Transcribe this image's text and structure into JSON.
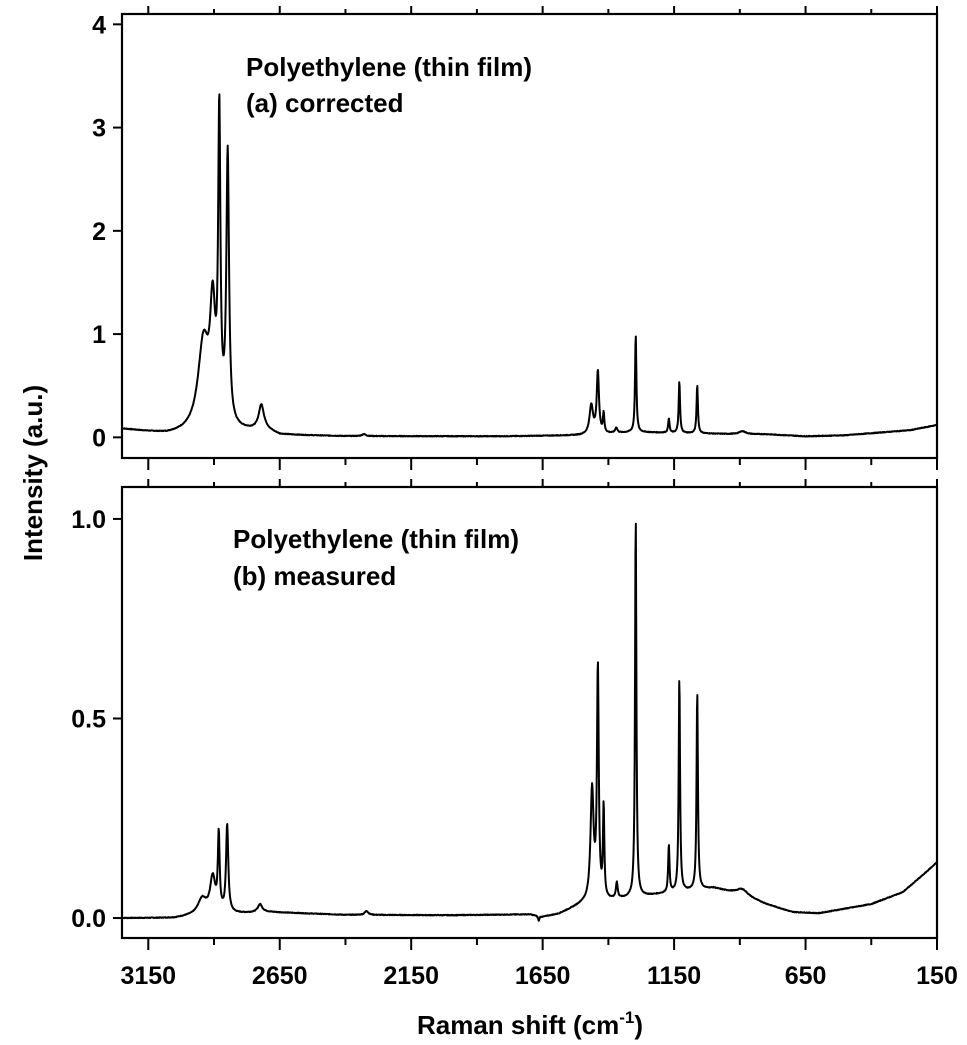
{
  "chart_data": [
    {
      "type": "line",
      "panel": "top",
      "annotation": [
        "Polyethylene (thin film)",
        "(a) corrected"
      ],
      "xlabel": "",
      "ylabel": "",
      "xlim": [
        3250,
        150
      ],
      "x_reversed": true,
      "ylim": [
        -0.2,
        4.1
      ],
      "yticks": [
        0,
        1,
        2,
        3,
        4
      ],
      "ytick_labels": [
        "0",
        "1",
        "2",
        "3",
        "4"
      ],
      "xticks": [
        3150,
        2650,
        2150,
        1650,
        1150,
        650,
        150
      ],
      "xticks_labeled": false,
      "grid": false,
      "legend": "none",
      "baseline": [
        [
          3250,
          0.08
        ],
        [
          3150,
          0.05
        ],
        [
          3080,
          0.03
        ],
        [
          2700,
          0.06
        ],
        [
          2650,
          0.02
        ],
        [
          2400,
          0.01
        ],
        [
          2200,
          0.01
        ],
        [
          1800,
          0.01
        ],
        [
          1500,
          0.02
        ],
        [
          1300,
          0.05
        ],
        [
          1100,
          0.04
        ],
        [
          900,
          0.03
        ],
        [
          800,
          0.03
        ],
        [
          650,
          0.01
        ],
        [
          500,
          0.02
        ],
        [
          350,
          0.05
        ],
        [
          250,
          0.07
        ],
        [
          150,
          0.12
        ]
      ],
      "peaks": [
        {
          "center": 2940,
          "height": 0.85,
          "width": 25
        },
        {
          "center": 2905,
          "height": 1.05,
          "width": 12
        },
        {
          "center": 2880,
          "height": 2.9,
          "width": 5
        },
        {
          "center": 2848,
          "height": 2.6,
          "width": 6
        },
        {
          "center": 2720,
          "height": 0.24,
          "width": 12
        },
        {
          "center": 2330,
          "height": 0.02,
          "width": 8
        },
        {
          "center": 1465,
          "height": 0.28,
          "width": 8
        },
        {
          "center": 1440,
          "height": 0.6,
          "width": 5
        },
        {
          "center": 1418,
          "height": 0.19,
          "width": 3
        },
        {
          "center": 1370,
          "height": 0.05,
          "width": 5
        },
        {
          "center": 1296,
          "height": 0.95,
          "width": 3
        },
        {
          "center": 1170,
          "height": 0.14,
          "width": 3
        },
        {
          "center": 1130,
          "height": 0.5,
          "width": 3
        },
        {
          "center": 1062,
          "height": 0.47,
          "width": 3
        },
        {
          "center": 890,
          "height": 0.03,
          "width": 15
        }
      ]
    },
    {
      "type": "line",
      "panel": "bottom",
      "annotation": [
        "Polyethylene (thin film)",
        "(b) measured"
      ],
      "xlabel": "Raman shift (cm⁻¹)",
      "xlabel_parts": {
        "main": "Raman shift (cm",
        "sup": "-1",
        "close": ")"
      },
      "ylabel": "",
      "xlim": [
        3250,
        150
      ],
      "x_reversed": true,
      "ylim": [
        -0.05,
        1.08
      ],
      "yticks": [
        0.0,
        0.5,
        1.0
      ],
      "ytick_labels": [
        "0.0",
        "0.5",
        "1.0"
      ],
      "xticks": [
        3150,
        2650,
        2150,
        1650,
        1150,
        650,
        150
      ],
      "xtick_labels": [
        "3150",
        "2650",
        "2150",
        "1650",
        "1150",
        "650",
        "150"
      ],
      "grid": false,
      "legend": "none",
      "baseline": [
        [
          3250,
          0.0
        ],
        [
          3050,
          0.0
        ],
        [
          3000,
          0.004
        ],
        [
          2700,
          0.015
        ],
        [
          2400,
          0.008
        ],
        [
          2000,
          0.007
        ],
        [
          1700,
          0.009
        ],
        [
          1650,
          0.003
        ],
        [
          1590,
          0.01
        ],
        [
          1500,
          0.035
        ],
        [
          1200,
          0.06
        ],
        [
          1000,
          0.075
        ],
        [
          900,
          0.06
        ],
        [
          800,
          0.035
        ],
        [
          700,
          0.015
        ],
        [
          600,
          0.012
        ],
        [
          400,
          0.035
        ],
        [
          280,
          0.065
        ],
        [
          200,
          0.11
        ],
        [
          150,
          0.14
        ]
      ],
      "peaks": [
        {
          "center": 2945,
          "height": 0.04,
          "width": 20
        },
        {
          "center": 2905,
          "height": 0.09,
          "width": 12
        },
        {
          "center": 2882,
          "height": 0.19,
          "width": 4
        },
        {
          "center": 2850,
          "height": 0.22,
          "width": 5
        },
        {
          "center": 2725,
          "height": 0.02,
          "width": 10
        },
        {
          "center": 2320,
          "height": 0.01,
          "width": 8
        },
        {
          "center": 1665,
          "height": -0.012,
          "width": 3
        },
        {
          "center": 1462,
          "height": 0.28,
          "width": 7
        },
        {
          "center": 1440,
          "height": 0.58,
          "width": 4
        },
        {
          "center": 1418,
          "height": 0.23,
          "width": 3
        },
        {
          "center": 1368,
          "height": 0.04,
          "width": 4
        },
        {
          "center": 1296,
          "height": 0.96,
          "width": 3
        },
        {
          "center": 1170,
          "height": 0.12,
          "width": 3
        },
        {
          "center": 1130,
          "height": 0.54,
          "width": 3
        },
        {
          "center": 1062,
          "height": 0.5,
          "width": 3
        },
        {
          "center": 890,
          "height": 0.015,
          "width": 25
        }
      ]
    }
  ],
  "shared": {
    "ylabel": "Intensity (a.u.)"
  }
}
